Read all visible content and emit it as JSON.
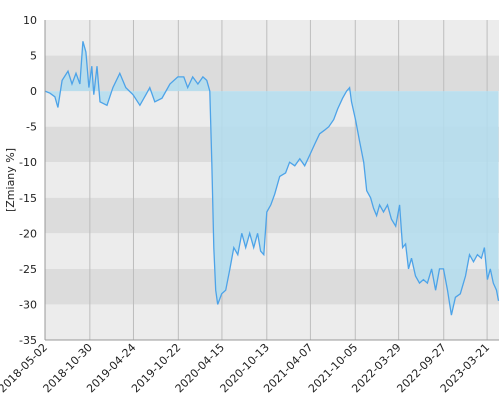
{
  "chart_data": {
    "type": "area",
    "y_label": "[Zmiany %]",
    "x": [
      "2018-05-02",
      "2018-05-22",
      "2018-06-11",
      "2018-06-23",
      "2018-07-10",
      "2018-08-03",
      "2018-08-19",
      "2018-09-04",
      "2018-09-20",
      "2018-10-02",
      "2018-10-14",
      "2018-10-26",
      "2018-11-07",
      "2018-11-15",
      "2018-11-28",
      "2018-12-10",
      "2019-01-07",
      "2019-01-31",
      "2019-02-28",
      "2019-03-24",
      "2019-04-22",
      "2019-05-20",
      "2019-06-13",
      "2019-06-29",
      "2019-07-19",
      "2019-08-17",
      "2019-09-18",
      "2019-10-20",
      "2019-11-13",
      "2019-11-29",
      "2019-12-19",
      "2020-01-09",
      "2020-01-29",
      "2020-02-14",
      "2020-02-26",
      "2020-03-05",
      "2020-03-13",
      "2020-03-21",
      "2020-03-29",
      "2020-04-14",
      "2020-04-30",
      "2020-05-17",
      "2020-06-02",
      "2020-06-18",
      "2020-07-04",
      "2020-07-20",
      "2020-08-05",
      "2020-08-21",
      "2020-09-06",
      "2020-09-18",
      "2020-10-01",
      "2020-10-13",
      "2020-10-29",
      "2020-11-14",
      "2020-12-04",
      "2020-12-28",
      "2021-01-13",
      "2021-02-03",
      "2021-02-23",
      "2021-03-15",
      "2021-04-04",
      "2021-04-24",
      "2021-05-14",
      "2021-06-03",
      "2021-06-20",
      "2021-07-10",
      "2021-07-26",
      "2021-08-15",
      "2021-08-31",
      "2021-09-12",
      "2021-09-20",
      "2021-10-06",
      "2021-10-22",
      "2021-11-08",
      "2021-11-20",
      "2021-12-06",
      "2021-12-18",
      "2021-12-30",
      "2022-01-11",
      "2022-01-27",
      "2022-02-12",
      "2022-02-28",
      "2022-03-17",
      "2022-04-02",
      "2022-04-14",
      "2022-04-26",
      "2022-05-08",
      "2022-05-20",
      "2022-06-05",
      "2022-06-21",
      "2022-07-07",
      "2022-07-23",
      "2022-08-09",
      "2022-08-25",
      "2022-09-10",
      "2022-09-26",
      "2022-10-12",
      "2022-10-28",
      "2022-11-13",
      "2022-12-03",
      "2022-12-24",
      "2023-01-09",
      "2023-01-25",
      "2023-02-10",
      "2023-02-26",
      "2023-03-10",
      "2023-03-22",
      "2023-04-03",
      "2023-04-15",
      "2023-04-28",
      "2023-05-06"
    ],
    "series": [
      {
        "color": "#4da3e8",
        "fill": "#b3ddef",
        "values": [
          0,
          -0.3,
          -0.8,
          -2.3,
          1.5,
          2.8,
          1,
          2.5,
          1,
          7,
          5.5,
          0.5,
          3.5,
          -0.5,
          3.5,
          -1.5,
          -2,
          0.5,
          2.5,
          0.5,
          -0.5,
          -2,
          -0.5,
          0.5,
          -1.5,
          -1,
          1,
          2,
          2,
          0.5,
          2,
          1,
          2,
          1.5,
          0,
          -10,
          -22,
          -28,
          -30,
          -28.5,
          -28,
          -25,
          -22,
          -23,
          -20,
          -22,
          -20,
          -22,
          -20,
          -22.5,
          -23,
          -17,
          -16,
          -14.5,
          -12,
          -11.5,
          -10,
          -10.5,
          -9.5,
          -10.5,
          -9,
          -7.5,
          -6,
          -5.5,
          -5,
          -4,
          -2.5,
          -1,
          0,
          0.5,
          -1.5,
          -4,
          -7,
          -10,
          -14,
          -15,
          -16.5,
          -17.5,
          -16,
          -17,
          -16,
          -18,
          -19,
          -16,
          -22,
          -21.5,
          -25,
          -23.5,
          -26,
          -27,
          -26.5,
          -27,
          -25,
          -28,
          -25,
          -25,
          -28,
          -31.5,
          -29,
          -28.5,
          -26,
          -23,
          -24,
          -23,
          -23.5,
          -22,
          -26.5,
          -25,
          -27,
          -28,
          -29.5
        ]
      }
    ],
    "xlim": [
      "2018-05-02",
      "2023-05-08"
    ],
    "xticks": [
      "2018-05-02",
      "2018-10-30",
      "2019-04-24",
      "2019-10-22",
      "2020-04-15",
      "2020-10-13",
      "2021-04-07",
      "2021-10-05",
      "2022-03-29",
      "2022-09-27",
      "2023-03-21"
    ],
    "ylim": [
      -35,
      10
    ],
    "yticks": [
      -35,
      -30,
      -25,
      -20,
      -15,
      -10,
      -5,
      0,
      5,
      10
    ],
    "grid": true,
    "band_colors": [
      "#ececec",
      "#dcdcdc"
    ],
    "grid_color": "#bdbdbd"
  }
}
